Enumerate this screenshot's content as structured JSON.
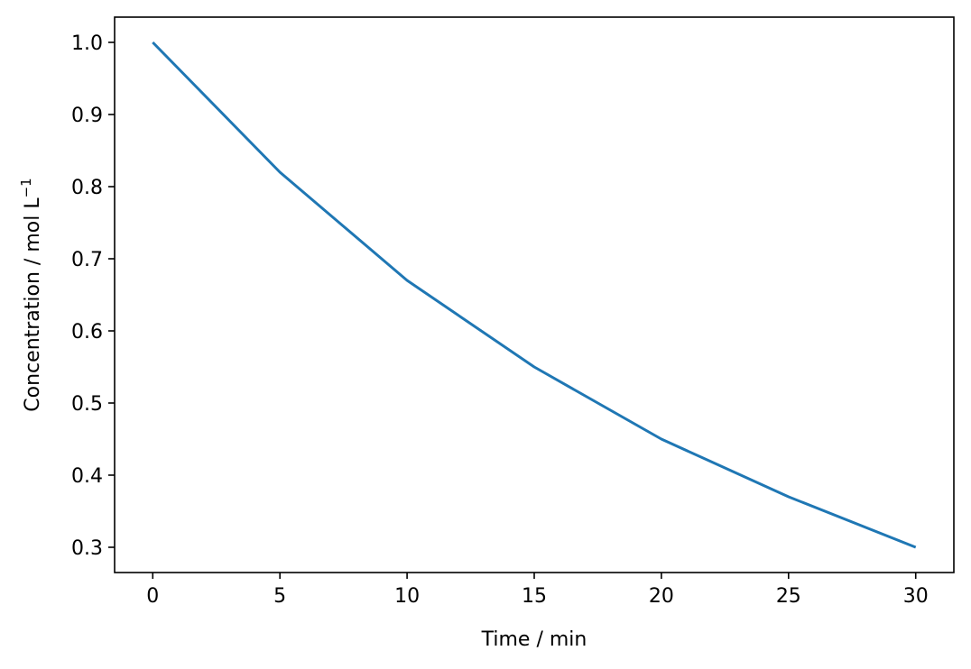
{
  "chart_data": {
    "type": "line",
    "title": "",
    "xlabel": "Time / min",
    "ylabel_main": "Concentration / mol L",
    "ylabel_superscript": "−1",
    "xlim": [
      -1.5,
      31.5
    ],
    "ylim": [
      0.265,
      1.035
    ],
    "x_ticks": [
      0,
      5,
      10,
      15,
      20,
      25,
      30
    ],
    "x_tick_labels": [
      "0",
      "5",
      "10",
      "15",
      "20",
      "25",
      "30"
    ],
    "y_ticks": [
      0.3,
      0.4,
      0.5,
      0.6,
      0.7,
      0.8,
      0.9,
      1.0
    ],
    "y_tick_labels": [
      "0.3",
      "0.4",
      "0.5",
      "0.6",
      "0.7",
      "0.8",
      "0.9",
      "1.0"
    ],
    "grid": false,
    "series": [
      {
        "color": "#1f77b4",
        "x": [
          0,
          5,
          10,
          15,
          20,
          25,
          30
        ],
        "y": [
          1.0,
          0.82,
          0.67,
          0.55,
          0.45,
          0.37,
          0.3
        ]
      }
    ]
  }
}
